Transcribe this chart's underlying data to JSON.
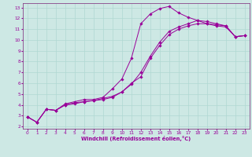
{
  "xlabel": "Windchill (Refroidissement éolien,°C)",
  "bg_color": "#cde8e4",
  "line_color": "#990099",
  "xlim": [
    -0.5,
    23.5
  ],
  "ylim": [
    1.8,
    13.4
  ],
  "xticks": [
    0,
    1,
    2,
    3,
    4,
    5,
    6,
    7,
    8,
    9,
    10,
    11,
    12,
    13,
    14,
    15,
    16,
    17,
    18,
    19,
    20,
    21,
    22,
    23
  ],
  "yticks": [
    2,
    3,
    4,
    5,
    6,
    7,
    8,
    9,
    10,
    11,
    12,
    13
  ],
  "grid_color": "#b0d8d2",
  "spine_color": "#884488",
  "curve1_x": [
    0,
    1,
    2,
    3,
    4,
    5,
    6,
    7,
    8,
    9,
    10,
    11,
    12,
    13,
    14,
    15,
    16,
    17,
    18,
    19,
    20,
    21,
    22,
    23
  ],
  "curve1_y": [
    2.9,
    2.4,
    3.6,
    3.5,
    4.1,
    4.3,
    4.5,
    4.5,
    4.7,
    5.5,
    6.4,
    8.3,
    11.5,
    12.4,
    12.9,
    13.1,
    12.5,
    12.1,
    11.8,
    11.5,
    11.3,
    11.2,
    10.3,
    10.4
  ],
  "curve2_x": [
    0,
    1,
    2,
    3,
    4,
    5,
    6,
    7,
    8,
    9,
    10,
    11,
    12,
    13,
    14,
    15,
    16,
    17,
    18,
    19,
    20,
    21,
    22,
    23
  ],
  "curve2_y": [
    2.9,
    2.4,
    3.6,
    3.5,
    4.0,
    4.2,
    4.3,
    4.4,
    4.6,
    4.8,
    5.2,
    6.0,
    6.6,
    8.3,
    9.5,
    10.5,
    11.0,
    11.3,
    11.5,
    11.5,
    11.4,
    11.3,
    10.3,
    10.4
  ],
  "curve3_x": [
    0,
    1,
    2,
    3,
    4,
    5,
    6,
    7,
    8,
    9,
    10,
    11,
    12,
    13,
    14,
    15,
    16,
    17,
    18,
    19,
    20,
    21,
    22,
    23
  ],
  "curve3_y": [
    2.9,
    2.4,
    3.6,
    3.5,
    4.0,
    4.1,
    4.3,
    4.4,
    4.5,
    4.7,
    5.2,
    5.9,
    7.0,
    8.5,
    9.8,
    10.8,
    11.2,
    11.5,
    11.8,
    11.7,
    11.5,
    11.3,
    10.3,
    10.4
  ]
}
